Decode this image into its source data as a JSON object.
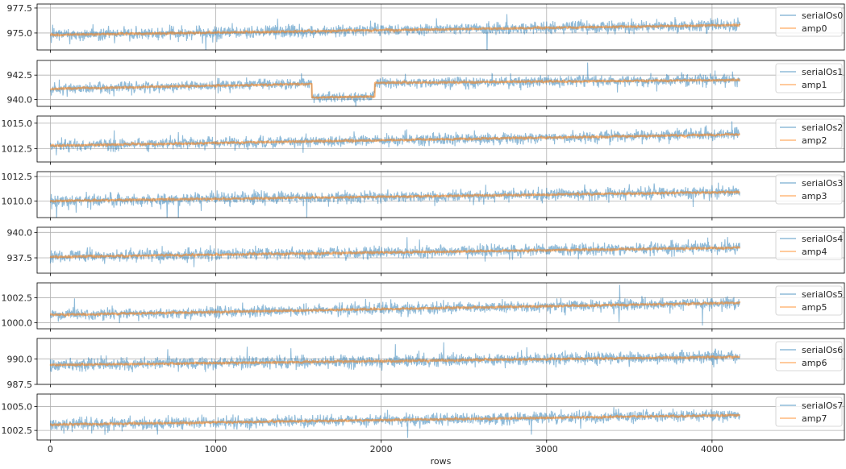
{
  "colors": {
    "raw": "#1f77b4",
    "smooth": "#ff7f0e",
    "grid": "#b0b0b0",
    "axis": "#000000",
    "text": "#262626"
  },
  "chart_data": [
    {
      "type": "line",
      "n": 4170,
      "xlim": [
        -80,
        4800
      ],
      "ylim": [
        973.3,
        977.9
      ],
      "yticks": [
        975.0,
        977.5
      ],
      "ytick_labels": [
        "975.0",
        "977.5"
      ],
      "grid": true,
      "legend_position": "upper-right",
      "series": [
        {
          "name": "serialOs0",
          "segments": [
            [
              0,
              974.8
            ],
            [
              4170,
              975.8
            ]
          ],
          "noise": 0.55
        },
        {
          "name": "amp0",
          "segments": [
            [
              0,
              974.8
            ],
            [
              4170,
              975.8
            ]
          ]
        }
      ]
    },
    {
      "type": "line",
      "n": 4170,
      "xlim": [
        -80,
        4800
      ],
      "ylim": [
        939.3,
        944.0
      ],
      "yticks": [
        940.0,
        942.5
      ],
      "ytick_labels": [
        "940.0",
        "942.5"
      ],
      "grid": true,
      "legend_position": "upper-right",
      "series": [
        {
          "name": "serialOs1",
          "segments": [
            [
              0,
              941.1
            ],
            [
              1580,
              941.6
            ],
            [
              1581,
              940.2
            ],
            [
              1960,
              940.3
            ],
            [
              1961,
              941.7
            ],
            [
              4170,
              942.0
            ]
          ],
          "noise": 0.5
        },
        {
          "name": "amp1",
          "segments": [
            [
              0,
              941.1
            ],
            [
              1580,
              941.6
            ],
            [
              1581,
              940.2
            ],
            [
              1960,
              940.3
            ],
            [
              1961,
              941.7
            ],
            [
              4170,
              942.0
            ]
          ]
        }
      ]
    },
    {
      "type": "line",
      "n": 4170,
      "xlim": [
        -80,
        4800
      ],
      "ylim": [
        1011.2,
        1015.7
      ],
      "yticks": [
        1012.5,
        1015.0
      ],
      "ytick_labels": [
        "1012.5",
        "1015.0"
      ],
      "grid": true,
      "legend_position": "upper-right",
      "series": [
        {
          "name": "serialOs2",
          "segments": [
            [
              0,
              1012.8
            ],
            [
              4170,
              1013.9
            ]
          ],
          "noise": 0.5
        },
        {
          "name": "amp2",
          "segments": [
            [
              0,
              1012.8
            ],
            [
              4170,
              1013.9
            ]
          ]
        }
      ]
    },
    {
      "type": "line",
      "n": 4170,
      "xlim": [
        -80,
        4800
      ],
      "ylim": [
        1008.3,
        1013.0
      ],
      "yticks": [
        1010.0,
        1012.5
      ],
      "ytick_labels": [
        "1010.0",
        "1012.5"
      ],
      "grid": true,
      "legend_position": "upper-right",
      "series": [
        {
          "name": "serialOs3",
          "segments": [
            [
              0,
              1010.0
            ],
            [
              4170,
              1010.9
            ]
          ],
          "noise": 0.55
        },
        {
          "name": "amp3",
          "segments": [
            [
              0,
              1010.0
            ],
            [
              4170,
              1010.9
            ]
          ]
        }
      ]
    },
    {
      "type": "line",
      "n": 4170,
      "xlim": [
        -80,
        4800
      ],
      "ylim": [
        936.0,
        940.5
      ],
      "yticks": [
        937.5,
        940.0
      ],
      "ytick_labels": [
        "937.5",
        "940.0"
      ],
      "grid": true,
      "legend_position": "upper-right",
      "series": [
        {
          "name": "serialOs4",
          "segments": [
            [
              0,
              937.6
            ],
            [
              4170,
              938.5
            ]
          ],
          "noise": 0.55
        },
        {
          "name": "amp4",
          "segments": [
            [
              0,
              937.6
            ],
            [
              4170,
              938.5
            ]
          ]
        }
      ]
    },
    {
      "type": "line",
      "n": 4170,
      "xlim": [
        -80,
        4800
      ],
      "ylim": [
        999.4,
        1004.0
      ],
      "yticks": [
        1000.0,
        1002.5
      ],
      "ytick_labels": [
        "1000.0",
        "1002.5"
      ],
      "grid": true,
      "legend_position": "upper-right",
      "series": [
        {
          "name": "serialOs5",
          "segments": [
            [
              0,
              1000.8
            ],
            [
              4170,
              1002.0
            ]
          ],
          "noise": 0.5
        },
        {
          "name": "amp5",
          "segments": [
            [
              0,
              1000.8
            ],
            [
              4170,
              1002.0
            ]
          ]
        }
      ]
    },
    {
      "type": "line",
      "n": 4170,
      "xlim": [
        -80,
        4800
      ],
      "ylim": [
        987.5,
        992.0
      ],
      "yticks": [
        987.5,
        990.0
      ],
      "ytick_labels": [
        "987.5",
        "990.0"
      ],
      "grid": true,
      "legend_position": "upper-right",
      "series": [
        {
          "name": "serialOs6",
          "segments": [
            [
              0,
              989.4
            ],
            [
              4170,
              990.2
            ]
          ],
          "noise": 0.55
        },
        {
          "name": "amp6",
          "segments": [
            [
              0,
              989.4
            ],
            [
              4170,
              990.2
            ]
          ]
        }
      ]
    },
    {
      "type": "line",
      "n": 4170,
      "xlim": [
        -80,
        4800
      ],
      "ylim": [
        1001.5,
        1006.3
      ],
      "yticks": [
        1002.5,
        1005.0
      ],
      "ytick_labels": [
        "1002.5",
        "1005.0"
      ],
      "grid": true,
      "legend_position": "upper-right",
      "series": [
        {
          "name": "serialOs7",
          "segments": [
            [
              0,
              1003.1
            ],
            [
              4170,
              1004.1
            ]
          ],
          "noise": 0.55
        },
        {
          "name": "amp7",
          "segments": [
            [
              0,
              1003.1
            ],
            [
              4170,
              1004.1
            ]
          ]
        }
      ]
    }
  ],
  "x_axis": {
    "label": "rows",
    "ticks": [
      0,
      1000,
      2000,
      3000,
      4000
    ],
    "tick_labels": [
      "0",
      "1000",
      "2000",
      "3000",
      "4000"
    ]
  }
}
